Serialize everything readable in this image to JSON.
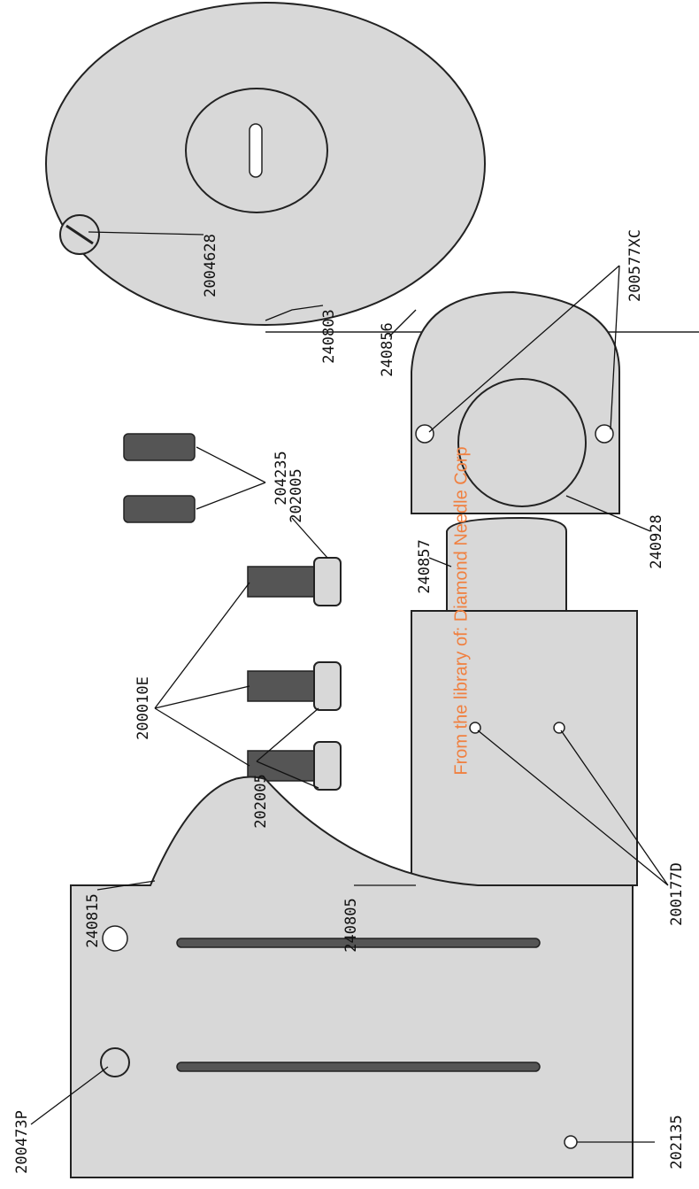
{
  "parts": [
    {
      "label": "2004628"
    },
    {
      "label": "240803"
    },
    {
      "label": "200577XC"
    },
    {
      "label": "240856"
    },
    {
      "label": "240928"
    },
    {
      "label": "204235"
    },
    {
      "label": "202005"
    },
    {
      "label": "200010E"
    },
    {
      "label": "202005"
    },
    {
      "label": "240857"
    },
    {
      "label": "240805"
    },
    {
      "label": "200177D"
    },
    {
      "label": "240815"
    },
    {
      "label": "200473P"
    },
    {
      "label": "202135"
    }
  ],
  "watermark": "From the library of: Diamond Needle Corp"
}
